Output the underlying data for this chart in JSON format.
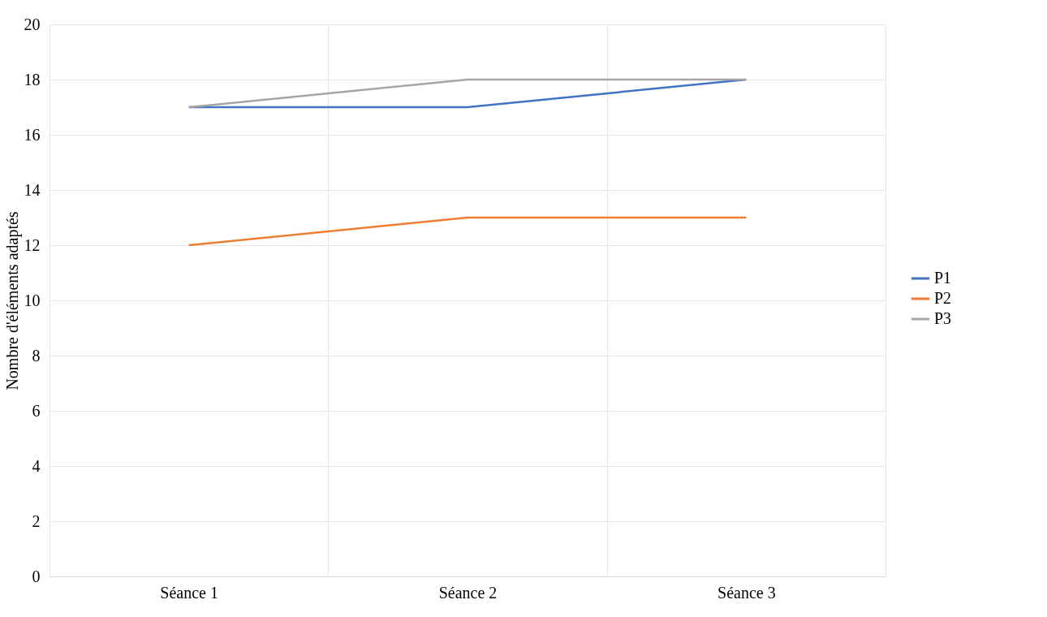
{
  "chart_data": {
    "type": "line",
    "ylabel": "Nombre d'éléments adaptés",
    "categories": [
      "Séance 1",
      "Séance 2",
      "Séance 3"
    ],
    "series": [
      {
        "name": "P1",
        "color": "#4472c4",
        "values": [
          17,
          17,
          18
        ]
      },
      {
        "name": "P2",
        "color": "#ed7d31",
        "values": [
          12,
          13,
          13
        ]
      },
      {
        "name": "P3",
        "color": "#a5a5a5",
        "values": [
          17,
          18,
          18
        ]
      }
    ],
    "ylim": [
      0,
      20
    ],
    "yticks": [
      0,
      2,
      4,
      6,
      8,
      10,
      12,
      14,
      16,
      18,
      20
    ],
    "grid": true,
    "legend": "right",
    "marker": "none",
    "line_style": "solid"
  }
}
